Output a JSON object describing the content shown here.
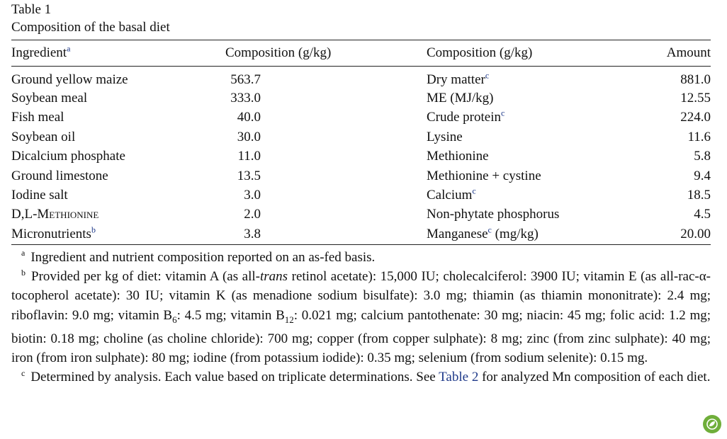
{
  "table": {
    "label": "Table 1",
    "caption": "Composition of the basal diet",
    "headers": [
      "Ingredient",
      "Composition (g/kg)",
      "Composition (g/kg)",
      "Amount"
    ],
    "header_footnote": "a",
    "rows": [
      {
        "ingredient": "Ground yellow maize",
        "ing_amt": "563.7",
        "nutrient": "Dry matter",
        "nut_fn": "c",
        "nut_suffix": "",
        "amount": "881.0"
      },
      {
        "ingredient": "Soybean meal",
        "ing_amt": "333.0",
        "nutrient": "ME (MJ/kg)",
        "nut_fn": "",
        "nut_suffix": "",
        "amount": "12.55"
      },
      {
        "ingredient": "Fish meal",
        "ing_amt": "40.0",
        "nutrient": "Crude protein",
        "nut_fn": "c",
        "nut_suffix": "",
        "amount": "224.0"
      },
      {
        "ingredient": "Soybean oil",
        "ing_amt": "30.0",
        "nutrient": "Lysine",
        "nut_fn": "",
        "nut_suffix": "",
        "amount": "11.6"
      },
      {
        "ingredient": "Dicalcium phosphate",
        "ing_amt": "11.0",
        "nutrient": "Methionine",
        "nut_fn": "",
        "nut_suffix": "",
        "amount": "5.8"
      },
      {
        "ingredient": "Ground limestone",
        "ing_amt": "13.5",
        "nutrient": "Methionine + cystine",
        "nut_fn": "",
        "nut_suffix": "",
        "amount": "9.4"
      },
      {
        "ingredient": "Iodine salt",
        "ing_amt": "3.0",
        "nutrient": "Calcium",
        "nut_fn": "c",
        "nut_suffix": "",
        "amount": "18.5"
      },
      {
        "ingredient": "D,L-Methionine",
        "ing_amt": "2.0",
        "nutrient": "Non-phytate phosphorus",
        "nut_fn": "",
        "nut_suffix": "",
        "amount": "4.5"
      },
      {
        "ingredient": "Micronutrients",
        "ing_fn": "b",
        "ing_amt": "3.8",
        "nutrient": "Manganese",
        "nut_fn": "c",
        "nut_suffix": " (mg/kg)",
        "amount": "20.00"
      }
    ]
  },
  "footnotes": {
    "a": {
      "mark": "a",
      "text": "Ingredient and nutrient composition reported on an as-fed basis."
    },
    "b": {
      "mark": "b",
      "p1": "Provided per kg of diet: vitamin A (as all-",
      "p1_italic": "trans",
      "p2": " retinol acetate): 15,000 IU; cholecalciferol: 3900 IU; vitamin E (as all-rac-α-tocopherol acetate): 30 IU; vitamin K (as menadione sodium bisulfate): 3.0 mg; thiamin (as thiamin mononitrate): 2.4 mg; riboflavin: 9.0 mg; vitamin B",
      "sub1": "6",
      "p3": ": 4.5 mg; vitamin B",
      "sub2": "12",
      "p4": ": 0.021 mg; calcium pantothenate: 30 mg; niacin: 45 mg; folic acid: 1.2 mg; biotin: 0.18 mg; choline (as choline chloride): 700 mg; copper (from copper sulphate): 8 mg; zinc (from zinc sulphate): 40 mg; iron (from iron sulphate): 80 mg; iodine (from potassium iodide): 0.35 mg; selenium (from sodium selenite): 0.15 mg."
    },
    "c": {
      "mark": "c",
      "p1": "Determined by analysis. Each value based on triplicate determinations. See ",
      "link": "Table 2",
      "p2": " for analyzed Mn composition of each diet."
    }
  },
  "colors": {
    "link": "#1f3a8a",
    "rule": "#222222",
    "badge": "#6fae3a"
  },
  "badge_icon": "leaf-icon"
}
